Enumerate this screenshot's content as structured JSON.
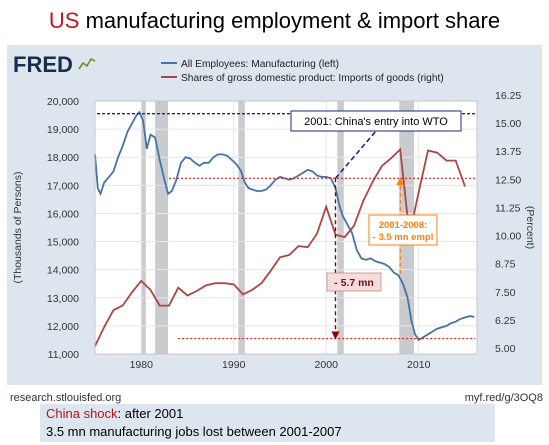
{
  "slide": {
    "title_accent": "US",
    "title_rest": " manufacturing employment & import share",
    "source_left": "research.stlouisfed.org",
    "source_right": "myf.red/g/3OQ8",
    "note_highlight": "China shock",
    "note_rest": ": after 2001",
    "note_line2": "3.5 mn manufacturing jobs lost between 2001-2007"
  },
  "colors": {
    "employment": "#4572a7",
    "imports": "#aa4643",
    "annotation_red": "#b2151b",
    "annotation_orange": "#ff7f0e",
    "annotation_navy": "#1f2a7a",
    "recession": "#c9cbcf"
  },
  "chart_data": {
    "type": "line",
    "logo": "FRED",
    "ylabel_left": "(Thousands of Persons)",
    "ylabel_right": "(Percent)",
    "x_ticks": [
      1980,
      1990,
      2000,
      2010
    ],
    "y_left_ticks": [
      "20,000",
      "19,000",
      "18,000",
      "17,000",
      "16,000",
      "15,000",
      "14,000",
      "13,000",
      "12,000",
      "11,000"
    ],
    "y_right_ticks": [
      "16.25",
      "15.00",
      "13.75",
      "12.50",
      "11.25",
      "10.00",
      "8.75",
      "7.50",
      "6.25",
      "5.00"
    ],
    "y_left_range": [
      11000,
      20000
    ],
    "y_right_range": [
      5.0,
      16.25
    ],
    "x_range": [
      1975,
      2016.3
    ],
    "recessions": [
      [
        1980.0,
        1980.5
      ],
      [
        1981.5,
        1982.9
      ],
      [
        1990.5,
        1991.2
      ],
      [
        2001.2,
        2001.9
      ],
      [
        2007.9,
        2009.5
      ]
    ],
    "legend": "top",
    "series": [
      {
        "name": "All Employees: Manufacturing (left)",
        "axis": "left",
        "points": [
          [
            1975.0,
            18100
          ],
          [
            1975.3,
            16900
          ],
          [
            1975.6,
            16700
          ],
          [
            1976.0,
            17100
          ],
          [
            1976.5,
            17300
          ],
          [
            1977.0,
            17500
          ],
          [
            1977.5,
            18000
          ],
          [
            1978.0,
            18400
          ],
          [
            1978.5,
            18900
          ],
          [
            1979.0,
            19200
          ],
          [
            1979.5,
            19500
          ],
          [
            1979.8,
            19600
          ],
          [
            1980.2,
            19300
          ],
          [
            1980.6,
            18300
          ],
          [
            1981.0,
            18800
          ],
          [
            1981.5,
            18700
          ],
          [
            1982.0,
            17900
          ],
          [
            1982.5,
            17200
          ],
          [
            1982.9,
            16700
          ],
          [
            1983.3,
            16800
          ],
          [
            1983.8,
            17200
          ],
          [
            1984.3,
            17800
          ],
          [
            1984.8,
            18000
          ],
          [
            1985.3,
            17950
          ],
          [
            1985.8,
            17800
          ],
          [
            1986.3,
            17700
          ],
          [
            1986.8,
            17800
          ],
          [
            1987.3,
            17800
          ],
          [
            1987.8,
            18000
          ],
          [
            1988.3,
            18100
          ],
          [
            1988.8,
            18100
          ],
          [
            1989.3,
            18050
          ],
          [
            1989.8,
            17900
          ],
          [
            1990.3,
            17750
          ],
          [
            1990.8,
            17500
          ],
          [
            1991.2,
            17100
          ],
          [
            1991.6,
            16900
          ],
          [
            1992.0,
            16850
          ],
          [
            1992.5,
            16800
          ],
          [
            1993.0,
            16800
          ],
          [
            1993.5,
            16850
          ],
          [
            1994.0,
            17000
          ],
          [
            1994.5,
            17200
          ],
          [
            1995.0,
            17300
          ],
          [
            1995.5,
            17250
          ],
          [
            1996.0,
            17200
          ],
          [
            1996.5,
            17250
          ],
          [
            1997.0,
            17350
          ],
          [
            1997.5,
            17450
          ],
          [
            1998.0,
            17550
          ],
          [
            1998.5,
            17500
          ],
          [
            1999.0,
            17350
          ],
          [
            1999.5,
            17300
          ],
          [
            2000.0,
            17300
          ],
          [
            2000.5,
            17250
          ],
          [
            2001.0,
            16900
          ],
          [
            2001.4,
            16300
          ],
          [
            2001.8,
            15900
          ],
          [
            2002.3,
            15600
          ],
          [
            2002.8,
            15300
          ],
          [
            2003.3,
            14700
          ],
          [
            2003.8,
            14400
          ],
          [
            2004.3,
            14350
          ],
          [
            2004.8,
            14400
          ],
          [
            2005.3,
            14300
          ],
          [
            2005.8,
            14250
          ],
          [
            2006.3,
            14200
          ],
          [
            2006.8,
            14100
          ],
          [
            2007.3,
            13900
          ],
          [
            2007.8,
            13800
          ],
          [
            2008.3,
            13500
          ],
          [
            2008.8,
            13000
          ],
          [
            2009.2,
            12200
          ],
          [
            2009.6,
            11700
          ],
          [
            2010.0,
            11500
          ],
          [
            2010.5,
            11600
          ],
          [
            2011.0,
            11700
          ],
          [
            2011.5,
            11800
          ],
          [
            2012.0,
            11900
          ],
          [
            2012.5,
            11950
          ],
          [
            2013.0,
            12000
          ],
          [
            2013.5,
            12100
          ],
          [
            2014.0,
            12150
          ],
          [
            2014.5,
            12250
          ],
          [
            2015.0,
            12300
          ],
          [
            2015.5,
            12350
          ],
          [
            2016.0,
            12320
          ]
        ]
      },
      {
        "name": "Shares of gross domestic product: Imports of goods (right)",
        "axis": "right",
        "points": [
          [
            1975,
            5.35
          ],
          [
            1976,
            6.2
          ],
          [
            1977,
            6.95
          ],
          [
            1978,
            7.15
          ],
          [
            1979,
            7.75
          ],
          [
            1980,
            8.25
          ],
          [
            1981,
            7.85
          ],
          [
            1982,
            7.15
          ],
          [
            1983,
            7.15
          ],
          [
            1984,
            7.95
          ],
          [
            1985,
            7.6
          ],
          [
            1986,
            7.8
          ],
          [
            1987,
            8.05
          ],
          [
            1988,
            8.15
          ],
          [
            1989,
            8.15
          ],
          [
            1990,
            8.1
          ],
          [
            1991,
            7.65
          ],
          [
            1992,
            7.85
          ],
          [
            1993,
            8.15
          ],
          [
            1994,
            8.7
          ],
          [
            1995,
            9.3
          ],
          [
            1996,
            9.4
          ],
          [
            1997,
            9.8
          ],
          [
            1998,
            9.75
          ],
          [
            1999,
            10.35
          ],
          [
            2000,
            11.55
          ],
          [
            2001,
            10.3
          ],
          [
            2002,
            10.2
          ],
          [
            2003,
            10.7
          ],
          [
            2004,
            11.8
          ],
          [
            2005,
            12.65
          ],
          [
            2006,
            13.35
          ],
          [
            2007,
            13.7
          ],
          [
            2008,
            14.1
          ],
          [
            2009,
            10.3
          ],
          [
            2010,
            12.2
          ],
          [
            2011,
            14.05
          ],
          [
            2012,
            13.95
          ],
          [
            2013,
            13.6
          ],
          [
            2014,
            13.6
          ],
          [
            2015,
            12.45
          ]
        ]
      }
    ],
    "annotations": {
      "wto_label": "2001: China's entry into WTO",
      "loss_label": "- 5.7 mn",
      "orange_label_1": "2001-2008:",
      "orange_label_2": "- 3.5 mn empl"
    }
  }
}
